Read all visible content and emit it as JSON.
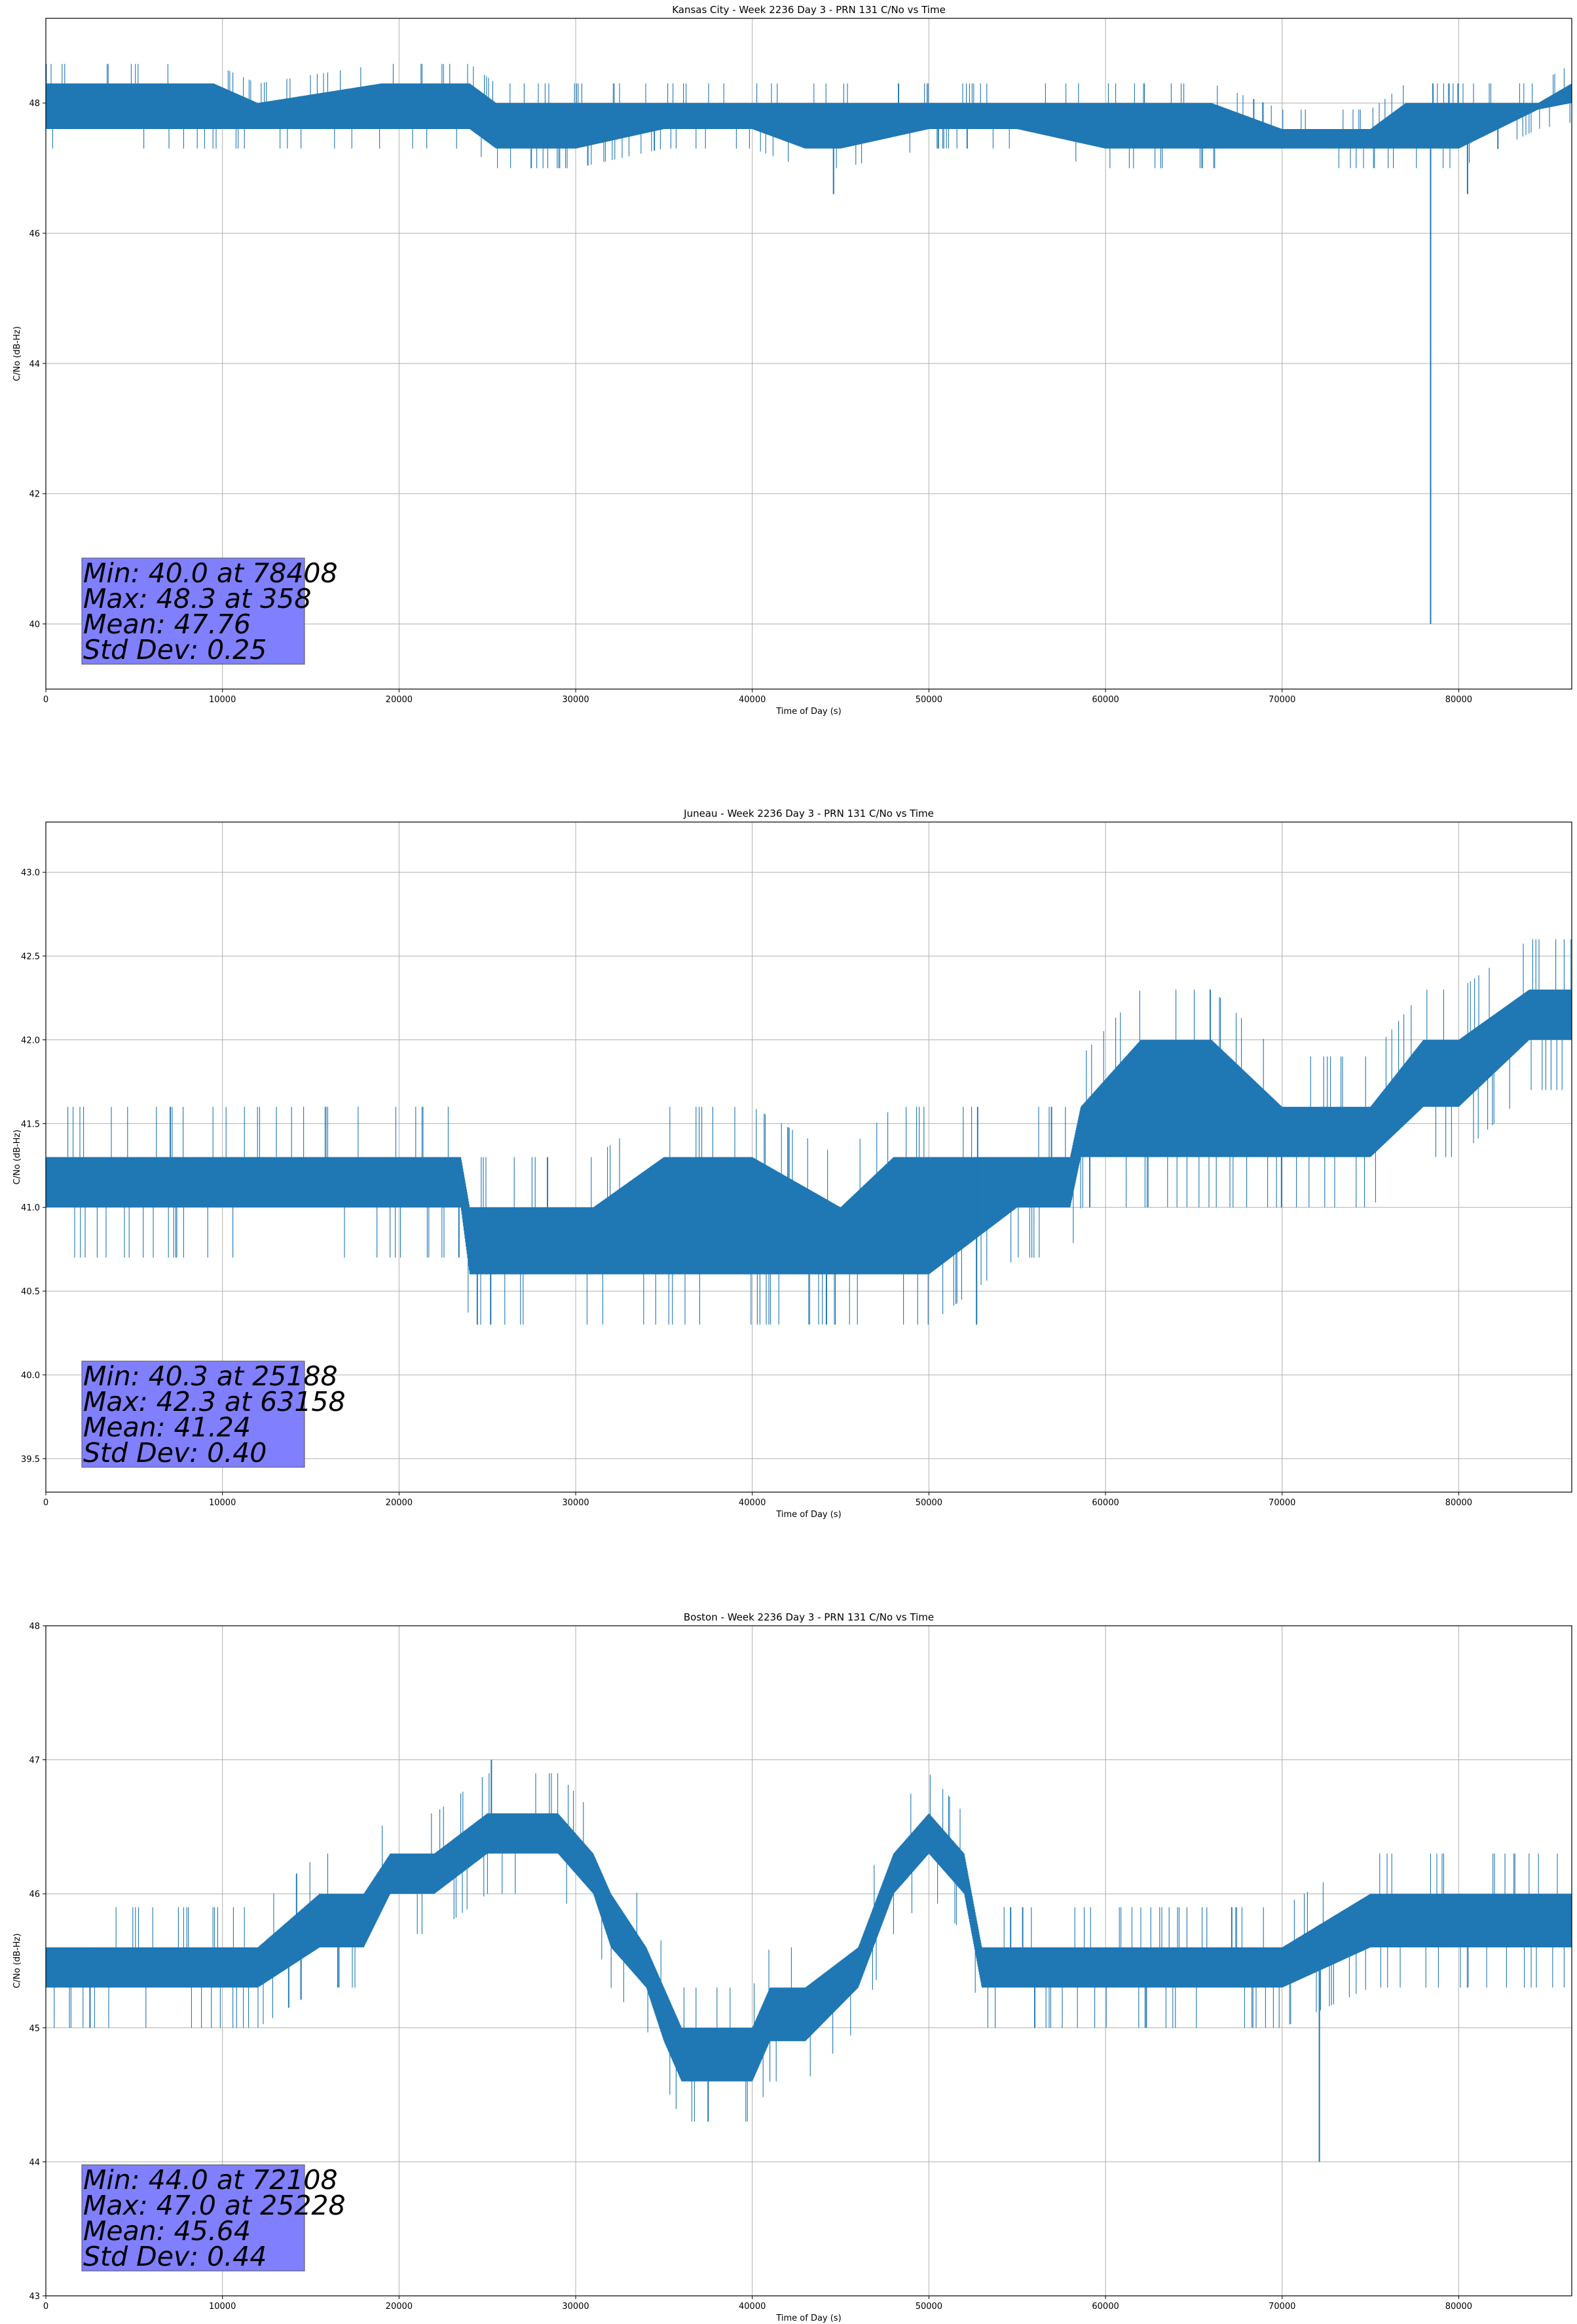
{
  "chart_data": [
    {
      "type": "line",
      "title": "Kansas City - Week 2236 Day 3 - PRN 131 C/No vs Time",
      "xlabel": "Time of Day (s)",
      "ylabel": "C/No (dB-Hz)",
      "xlim": [
        0,
        86400
      ],
      "ylim": [
        39,
        49.3
      ],
      "xticks": [
        0,
        10000,
        20000,
        30000,
        40000,
        50000,
        60000,
        70000,
        80000
      ],
      "yticks": [
        40,
        42,
        44,
        46,
        48
      ],
      "ytick_labels": [
        "40",
        "42",
        "44",
        "46",
        "48"
      ],
      "grid": true,
      "color": "#1f77b4",
      "quantization": 0.3,
      "envelope": {
        "x": [
          0,
          4500,
          9500,
          12000,
          19000,
          24000,
          25500,
          28000,
          30000,
          35000,
          40000,
          43000,
          45000,
          50000,
          55000,
          60000,
          65000,
          66000,
          70000,
          75000,
          77000,
          80000,
          84500,
          86400
        ],
        "low": [
          47.6,
          47.6,
          47.6,
          47.6,
          47.6,
          47.6,
          47.3,
          47.3,
          47.3,
          47.6,
          47.6,
          47.3,
          47.3,
          47.6,
          47.6,
          47.3,
          47.3,
          47.3,
          47.3,
          47.3,
          47.3,
          47.3,
          47.9,
          48.0
        ],
        "high": [
          48.3,
          48.3,
          48.3,
          48.0,
          48.3,
          48.3,
          48.0,
          48.0,
          48.0,
          48.0,
          48.0,
          48.0,
          48.0,
          48.0,
          48.0,
          48.0,
          48.0,
          48.0,
          47.6,
          47.6,
          48.0,
          48.0,
          48.0,
          48.3
        ]
      },
      "spikes": [
        [
          44600,
          46.6
        ],
        [
          78408,
          40.0
        ],
        [
          80500,
          46.6
        ]
      ],
      "stats": [
        "Min: 40.0 at 78408",
        "Max: 48.3 at 358",
        "Mean: 47.76",
        "Std Dev: 0.25"
      ],
      "stats_box_color": "#8080ff"
    },
    {
      "type": "line",
      "title": "Juneau - Week 2236 Day 3 - PRN 131 C/No vs Time",
      "xlabel": "Time of Day (s)",
      "ylabel": "C/No (dB-Hz)",
      "xlim": [
        0,
        86400
      ],
      "ylim": [
        39.3,
        43.3
      ],
      "xticks": [
        0,
        10000,
        20000,
        30000,
        40000,
        50000,
        60000,
        70000,
        80000
      ],
      "yticks": [
        39.5,
        40.0,
        40.5,
        41.0,
        41.5,
        42.0,
        42.5,
        43.0
      ],
      "ytick_labels": [
        "39.5",
        "40.0",
        "40.5",
        "41.0",
        "41.5",
        "42.0",
        "42.5",
        "43.0"
      ],
      "grid": true,
      "color": "#1f77b4",
      "quantization": 0.3,
      "envelope": {
        "x": [
          0,
          2000,
          5000,
          10000,
          15000,
          20000,
          23500,
          24000,
          28000,
          31000,
          35000,
          40000,
          45000,
          48000,
          50000,
          55000,
          58000,
          58600,
          62000,
          66000,
          70000,
          75000,
          78000,
          80000,
          84000,
          86400
        ],
        "low": [
          41.0,
          41.0,
          41.0,
          41.0,
          41.0,
          41.0,
          41.0,
          40.6,
          40.6,
          40.6,
          40.6,
          40.6,
          40.6,
          40.6,
          40.6,
          41.0,
          41.0,
          41.3,
          41.3,
          41.3,
          41.3,
          41.3,
          41.6,
          41.6,
          42.0,
          42.0
        ],
        "high": [
          41.3,
          41.3,
          41.3,
          41.3,
          41.3,
          41.3,
          41.3,
          41.0,
          41.0,
          41.0,
          41.3,
          41.3,
          41.0,
          41.3,
          41.3,
          41.3,
          41.3,
          41.6,
          42.0,
          42.0,
          41.6,
          41.6,
          42.0,
          42.0,
          42.3,
          42.3
        ]
      },
      "spikes": [
        [
          25188,
          40.3
        ],
        [
          44200,
          40.3
        ],
        [
          52700,
          40.3
        ]
      ],
      "stats": [
        "Min: 40.3 at 25188",
        "Max: 42.3 at 63158",
        "Mean: 41.24",
        "Std Dev: 0.40"
      ],
      "stats_box_color": "#8080ff"
    },
    {
      "type": "line",
      "title": "Boston - Week 2236 Day 3 - PRN 131 C/No vs Time",
      "xlabel": "Time of Day (s)",
      "ylabel": "C/No (dB-Hz)",
      "xlim": [
        0,
        86400
      ],
      "ylim": [
        43,
        48
      ],
      "xticks": [
        0,
        10000,
        20000,
        30000,
        40000,
        50000,
        60000,
        70000,
        80000
      ],
      "yticks": [
        43,
        44,
        45,
        46,
        47,
        48
      ],
      "ytick_labels": [
        "43",
        "44",
        "45",
        "46",
        "47",
        "48"
      ],
      "grid": true,
      "color": "#1f77b4",
      "quantization": 0.3,
      "envelope": {
        "x": [
          0,
          6000,
          12000,
          15500,
          18000,
          19500,
          22000,
          25000,
          27000,
          29000,
          31000,
          32000,
          34000,
          35000,
          36000,
          38000,
          40000,
          41000,
          43000,
          46000,
          48000,
          50000,
          52000,
          53000,
          55000,
          60000,
          70000,
          75000,
          80000,
          86400
        ],
        "low": [
          45.3,
          45.3,
          45.3,
          45.6,
          45.6,
          46.0,
          46.0,
          46.3,
          46.3,
          46.3,
          46.0,
          45.6,
          45.3,
          44.9,
          44.6,
          44.6,
          44.6,
          44.9,
          44.9,
          45.3,
          46.0,
          46.3,
          46.0,
          45.3,
          45.3,
          45.3,
          45.3,
          45.6,
          45.6,
          45.6
        ],
        "high": [
          45.6,
          45.6,
          45.6,
          46.0,
          46.0,
          46.3,
          46.3,
          46.6,
          46.6,
          46.6,
          46.3,
          46.0,
          45.6,
          45.3,
          45.0,
          45.0,
          45.0,
          45.3,
          45.3,
          45.6,
          46.3,
          46.6,
          46.3,
          45.6,
          45.6,
          45.6,
          45.6,
          46.0,
          46.0,
          46.0
        ]
      },
      "spikes": [
        [
          25228,
          47.0
        ],
        [
          2500,
          45.0
        ],
        [
          37500,
          44.3
        ],
        [
          72108,
          44.0
        ]
      ],
      "stats": [
        "Min: 44.0 at 72108",
        "Max: 47.0 at 25228",
        "Mean: 45.64",
        "Std Dev: 0.44"
      ],
      "stats_box_color": "#8080ff"
    }
  ]
}
